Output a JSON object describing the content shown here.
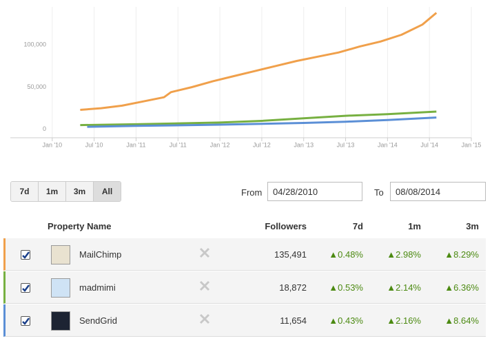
{
  "chart_data": {
    "type": "line",
    "ylim": [
      -10000,
      145000
    ],
    "yticks": [
      0,
      {
        "value": 50000,
        "label": "50,000"
      },
      {
        "value": 100000,
        "label": "100,000"
      }
    ],
    "xlim": [
      "2009-07",
      "2015-01"
    ],
    "xticks": [
      {
        "value": "2010-01",
        "label": "Jan '10"
      },
      {
        "value": "2010-07",
        "label": "Jul '10"
      },
      {
        "value": "2011-01",
        "label": "Jan '11"
      },
      {
        "value": "2011-07",
        "label": "Jul '11"
      },
      {
        "value": "2012-01",
        "label": "Jan '12"
      },
      {
        "value": "2012-07",
        "label": "Jul '12"
      },
      {
        "value": "2013-01",
        "label": "Jan '13"
      },
      {
        "value": "2013-07",
        "label": "Jul '13"
      },
      {
        "value": "2014-01",
        "label": "Jan '14"
      },
      {
        "value": "2014-07",
        "label": "Jul '14"
      },
      {
        "value": "2015-01",
        "label": "Jan '15"
      }
    ],
    "grid": true,
    "series": [
      {
        "name": "MailChimp",
        "color": "#f0a04b",
        "x": [
          "2010-05",
          "2010-08",
          "2010-11",
          "2011-02",
          "2011-05",
          "2011-06",
          "2011-09",
          "2011-12",
          "2012-03",
          "2012-06",
          "2012-09",
          "2012-12",
          "2013-03",
          "2013-06",
          "2013-09",
          "2013-12",
          "2014-03",
          "2014-06",
          "2014-08"
        ],
        "values": [
          23000,
          25000,
          28000,
          33000,
          38000,
          44000,
          50000,
          57000,
          63000,
          69000,
          75000,
          81000,
          86000,
          91000,
          98000,
          104000,
          112000,
          124000,
          138000
        ]
      },
      {
        "name": "madmimi",
        "color": "#77b041",
        "x": [
          "2010-05",
          "2011-01",
          "2012-01",
          "2012-07",
          "2013-01",
          "2013-07",
          "2014-01",
          "2014-08"
        ],
        "values": [
          5000,
          6000,
          8000,
          10000,
          13000,
          16000,
          18000,
          21000
        ]
      },
      {
        "name": "SendGrid",
        "color": "#5b8fd6",
        "x": [
          "2010-06",
          "2011-01",
          "2012-01",
          "2013-01",
          "2013-07",
          "2014-01",
          "2014-08"
        ],
        "values": [
          3000,
          4000,
          5500,
          7500,
          9000,
          11000,
          14000
        ]
      }
    ]
  },
  "controls": {
    "ranges": [
      "7d",
      "1m",
      "3m",
      "All"
    ],
    "from_label": "From",
    "from_value": "04/28/2010",
    "to_label": "To",
    "to_value": "08/08/2014"
  },
  "table": {
    "headers": [
      "Property Name",
      "Followers",
      "7d",
      "1m",
      "3m"
    ],
    "rows": [
      {
        "color": "#f0a04b",
        "cells": [
          "MailChimp",
          "135,491",
          "▲0.48%",
          "▲2.98%",
          "▲8.29%"
        ]
      },
      {
        "color": "#77b041",
        "cells": [
          "madmimi",
          "18,872",
          "▲0.53%",
          "▲2.14%",
          "▲6.36%"
        ]
      },
      {
        "color": "#5b8fd6",
        "cells": [
          "SendGrid",
          "11,654",
          "▲0.43%",
          "▲2.16%",
          "▲8.64%"
        ]
      }
    ]
  }
}
